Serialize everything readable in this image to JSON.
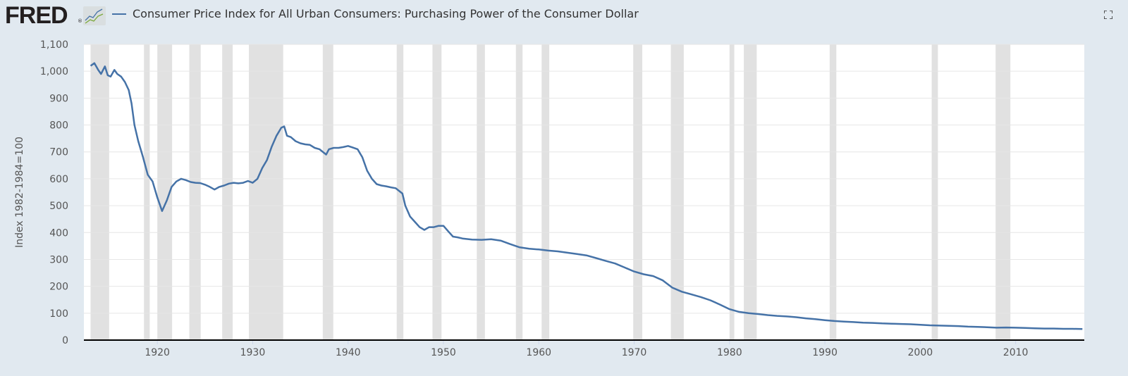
{
  "header": {
    "logo": "FRED",
    "logo_mark": "®",
    "series_title": "Consumer Price Index for All Urban Consumers: Purchasing Power of the Consumer Dollar",
    "fullscreen_icon": "fullscreen-icon"
  },
  "colors": {
    "line": "#4572a7",
    "recession": "#e1e1e1",
    "background": "#e1e9f0"
  },
  "chart_data": {
    "type": "line",
    "title": "Consumer Price Index for All Urban Consumers: Purchasing Power of the Consumer Dollar",
    "xlabel": "",
    "ylabel": "Index 1982-1984=100",
    "xlim": [
      1912.3,
      2017.2
    ],
    "ylim": [
      0,
      1100
    ],
    "yticks": [
      0,
      100,
      200,
      300,
      400,
      500,
      600,
      700,
      800,
      900,
      1000,
      1100
    ],
    "ytick_labels": [
      "0",
      "100",
      "200",
      "300",
      "400",
      "500",
      "600",
      "700",
      "800",
      "900",
      "1,000",
      "1,100"
    ],
    "xticks": [
      1920,
      1930,
      1940,
      1950,
      1960,
      1970,
      1980,
      1990,
      2000,
      2010
    ],
    "xtick_labels": [
      "1920",
      "1930",
      "1940",
      "1950",
      "1960",
      "1970",
      "1980",
      "1990",
      "2000",
      "2010"
    ],
    "grid": true,
    "recessions": [
      [
        1913.0,
        1914.95
      ],
      [
        1918.6,
        1919.2
      ],
      [
        1920.0,
        1921.55
      ],
      [
        1923.35,
        1924.55
      ],
      [
        1926.8,
        1927.9
      ],
      [
        1929.6,
        1933.2
      ],
      [
        1937.35,
        1938.45
      ],
      [
        1945.1,
        1945.8
      ],
      [
        1948.85,
        1949.8
      ],
      [
        1953.5,
        1954.35
      ],
      [
        1957.6,
        1958.3
      ],
      [
        1960.3,
        1961.1
      ],
      [
        1969.9,
        1970.85
      ],
      [
        1973.85,
        1975.2
      ],
      [
        1980.0,
        1980.5
      ],
      [
        1981.5,
        1982.85
      ],
      [
        1990.5,
        1991.2
      ],
      [
        2001.2,
        2001.85
      ],
      [
        2007.9,
        2009.45
      ]
    ],
    "series": [
      {
        "name": "Consumer Price Index for All Urban Consumers: Purchasing Power of the Consumer Dollar",
        "x": [
          1913.0,
          1913.4,
          1913.8,
          1914.1,
          1914.5,
          1914.8,
          1915.1,
          1915.5,
          1915.8,
          1916.2,
          1916.6,
          1917.0,
          1917.3,
          1917.6,
          1918.0,
          1918.5,
          1919.0,
          1919.5,
          1920.0,
          1920.5,
          1921.0,
          1921.5,
          1922.0,
          1922.5,
          1923.0,
          1923.5,
          1924.0,
          1924.5,
          1925.0,
          1925.5,
          1926.0,
          1926.5,
          1927.0,
          1927.5,
          1928.0,
          1928.5,
          1929.0,
          1929.5,
          1930.0,
          1930.5,
          1931.0,
          1931.5,
          1932.0,
          1932.5,
          1933.0,
          1933.3,
          1933.6,
          1934.0,
          1934.5,
          1935.0,
          1935.5,
          1936.0,
          1936.5,
          1937.0,
          1937.7,
          1938.0,
          1938.5,
          1939.0,
          1939.5,
          1940.0,
          1940.5,
          1941.0,
          1941.5,
          1942.0,
          1942.5,
          1943.0,
          1943.5,
          1944.0,
          1944.5,
          1945.0,
          1945.7,
          1946.0,
          1946.5,
          1947.0,
          1947.5,
          1948.0,
          1948.5,
          1949.0,
          1949.5,
          1950.0,
          1950.5,
          1951.0,
          1951.5,
          1952.0,
          1953.0,
          1954.0,
          1955.0,
          1956.0,
          1957.0,
          1958.0,
          1959.0,
          1960.0,
          1961.0,
          1962.0,
          1963.0,
          1964.0,
          1965.0,
          1966.0,
          1967.0,
          1968.0,
          1969.0,
          1970.0,
          1971.0,
          1972.0,
          1973.0,
          1974.0,
          1975.0,
          1976.0,
          1977.0,
          1978.0,
          1979.0,
          1980.0,
          1981.0,
          1982.0,
          1983.0,
          1984.0,
          1985.0,
          1986.0,
          1987.0,
          1988.0,
          1989.0,
          1990.0,
          1991.0,
          1992.0,
          1993.0,
          1994.0,
          1995.0,
          1996.0,
          1997.0,
          1998.0,
          1999.0,
          2000.0,
          2001.0,
          2002.0,
          2003.0,
          2004.0,
          2005.0,
          2006.0,
          2007.0,
          2008.0,
          2009.0,
          2010.0,
          2011.0,
          2012.0,
          2013.0,
          2014.0,
          2015.0,
          2016.0,
          2017.0
        ],
        "y": [
          1020,
          1030,
          1005,
          990,
          1018,
          985,
          980,
          1005,
          990,
          980,
          960,
          930,
          880,
          800,
          740,
          680,
          615,
          590,
          530,
          480,
          520,
          570,
          590,
          600,
          595,
          588,
          585,
          584,
          578,
          570,
          560,
          570,
          575,
          582,
          585,
          583,
          585,
          592,
          585,
          600,
          640,
          670,
          720,
          760,
          790,
          795,
          760,
          755,
          740,
          732,
          728,
          726,
          715,
          710,
          690,
          710,
          715,
          715,
          718,
          722,
          716,
          710,
          680,
          630,
          600,
          580,
          575,
          572,
          568,
          565,
          545,
          500,
          460,
          440,
          420,
          410,
          420,
          420,
          425,
          425,
          405,
          385,
          382,
          378,
          374,
          373,
          375,
          370,
          357,
          345,
          340,
          337,
          333,
          330,
          325,
          320,
          315,
          305,
          295,
          285,
          270,
          255,
          245,
          238,
          222,
          195,
          180,
          170,
          160,
          148,
          132,
          115,
          105,
          100,
          97,
          93,
          90,
          88,
          85,
          81,
          78,
          74,
          71,
          69,
          67,
          65,
          64,
          62,
          61,
          60,
          59,
          57,
          55,
          54,
          53,
          52,
          50,
          49,
          48,
          46,
          47,
          46,
          45,
          44,
          43,
          43,
          42,
          42,
          41
        ]
      }
    ]
  }
}
